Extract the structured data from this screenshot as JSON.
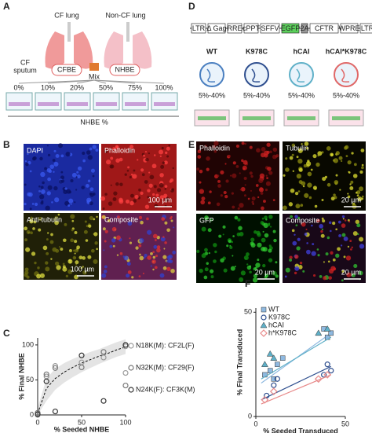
{
  "panel_a": {
    "letter": "A",
    "cf_lung": "CF lung",
    "non_cf_lung": "Non-CF lung",
    "cf": "CF",
    "sputum": "sputum",
    "cfbe": "CFBE",
    "nhbe": "NHBE",
    "mix": "Mix",
    "wells": [
      "0%",
      "10%",
      "20%",
      "50%",
      "75%",
      "100%"
    ],
    "axis_label": "NHBE %"
  },
  "panel_d": {
    "letter": "D",
    "construct": [
      "LTR",
      "Δ Gag",
      "RRE",
      "cPPT",
      "SFFV",
      "EGFP",
      "2A",
      "CFTR",
      "WPRE",
      "LTR"
    ],
    "vectors": [
      "WT",
      "K978C",
      "hCAI",
      "hCAI*K978C"
    ],
    "range": "5%-40%"
  },
  "panel_b": {
    "letter": "B",
    "images": [
      {
        "label": "DAPI"
      },
      {
        "label": "Phalloidin",
        "scale": "100 µm"
      },
      {
        "label": "Anti-tubulin",
        "scale": "100 µm"
      },
      {
        "label": "Composite"
      }
    ]
  },
  "panel_e": {
    "letter": "E",
    "images": [
      {
        "label": "Phalloidin"
      },
      {
        "label": "Tubulin",
        "scale": "20 µm"
      },
      {
        "label": "GFP",
        "scale": "20 µm"
      },
      {
        "label": "Composite",
        "scale": "20 µm"
      }
    ]
  },
  "chart_data": [
    {
      "type": "scatter",
      "panel_label": "C",
      "x_label": "% Seeded NHBE",
      "y_label": "% Final NHBE",
      "xlim": [
        0,
        100
      ],
      "ylim": [
        0,
        110
      ],
      "xticks": [
        0,
        50,
        100
      ],
      "yticks": [
        0,
        50,
        100
      ],
      "band": {
        "x": [
          0,
          10,
          20,
          30,
          40,
          50,
          60,
          70,
          80,
          90,
          100
        ],
        "lower": [
          0,
          20,
          36,
          46,
          54,
          61,
          67,
          73,
          78,
          83,
          87
        ],
        "upper": [
          10,
          52,
          66,
          74,
          80,
          85,
          90,
          94,
          99,
          104,
          108
        ],
        "color": "#e4e4e4"
      },
      "fit": {
        "x": [
          0,
          10,
          20,
          30,
          40,
          50,
          60,
          70,
          80,
          90,
          100
        ],
        "y": [
          2,
          38,
          52,
          61,
          68,
          74,
          79,
          84,
          88,
          93,
          97
        ]
      },
      "series": [
        {
          "name": "N18K(M): CF2L(F)",
          "color": "#9a9a9a",
          "marker": "circle",
          "x": [
            0,
            10,
            20,
            50,
            75,
            100,
            100
          ],
          "y": [
            0,
            55,
            70,
            75,
            82,
            98,
            60
          ]
        },
        {
          "name": "N32K(M): CF29(F)",
          "color": "#777777",
          "marker": "circle",
          "x": [
            0,
            10,
            20,
            50,
            75,
            100
          ],
          "y": [
            3,
            58,
            67,
            68,
            90,
            42
          ]
        },
        {
          "name": "N24K(F): CF3K(M)",
          "color": "#333333",
          "marker": "circle",
          "x": [
            0,
            10,
            20,
            50,
            75,
            100
          ],
          "y": [
            1,
            48,
            5,
            85,
            20,
            100
          ]
        }
      ]
    },
    {
      "type": "scatter",
      "panel_label": "F",
      "x_label": "% Seeded Transduced",
      "y_label": "% Final Transduced",
      "xlim": [
        0,
        50
      ],
      "ylim": [
        0,
        52
      ],
      "xticks": [
        0,
        50
      ],
      "yticks": [
        0,
        50
      ],
      "series": [
        {
          "name": "WT",
          "color": "#8fb9e0",
          "marker": "square",
          "x": [
            5,
            8,
            10,
            12,
            15,
            38,
            40,
            42
          ],
          "y": [
            20,
            22,
            18,
            25,
            28,
            42,
            38,
            40
          ],
          "fit": {
            "x": [
              3,
              42
            ],
            "y": [
              16,
              40
            ]
          }
        },
        {
          "name": "K978C",
          "color": "#2f4f8f",
          "marker": "circle",
          "x": [
            6,
            10,
            12,
            38,
            40,
            42
          ],
          "y": [
            10,
            15,
            18,
            20,
            25,
            22
          ],
          "fit": {
            "x": [
              3,
              42
            ],
            "y": [
              8,
              24
            ]
          }
        },
        {
          "name": "hCAI",
          "color": "#5fb0c8",
          "marker": "triangle",
          "x": [
            5,
            8,
            10,
            35,
            40
          ],
          "y": [
            25,
            30,
            28,
            40,
            42
          ],
          "fit": {
            "x": [
              3,
              42
            ],
            "y": [
              18,
              38
            ]
          }
        },
        {
          "name": "h*K978C",
          "color": "#e88a8a",
          "marker": "diamond",
          "x": [
            5,
            10,
            35,
            40
          ],
          "y": [
            8,
            12,
            18,
            20
          ],
          "fit": {
            "x": [
              3,
              42
            ],
            "y": [
              6,
              20
            ]
          }
        }
      ]
    }
  ]
}
